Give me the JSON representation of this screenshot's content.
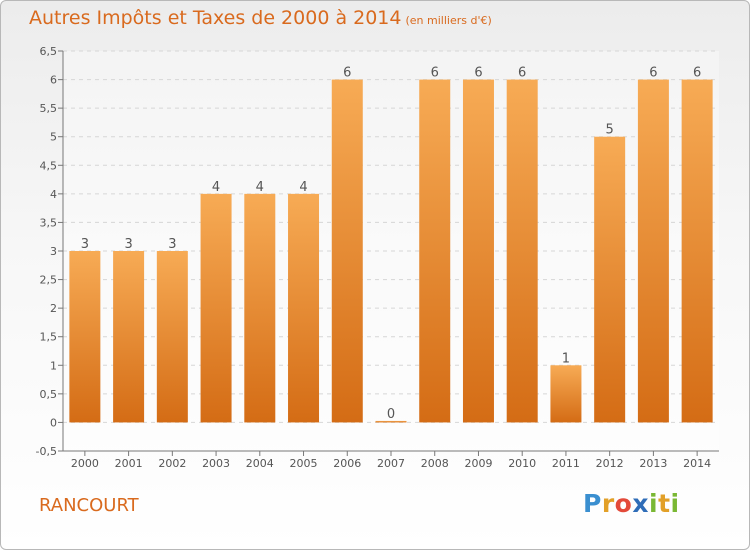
{
  "title": "Autres Impôts et Taxes de 2000 à 2014",
  "unit": "(en milliers d'€)",
  "commune": "RANCOURT",
  "logo": [
    "P",
    "r",
    "o",
    "x",
    "i",
    "t",
    "i"
  ],
  "colors": {
    "bar_top": "#f5a650",
    "bar_bottom": "#d96f17",
    "title": "#d96a1e"
  },
  "chart_data": {
    "type": "bar",
    "title": "Autres Impôts et Taxes de 2000 à 2014",
    "categories": [
      "2000",
      "2001",
      "2002",
      "2003",
      "2004",
      "2005",
      "2006",
      "2007",
      "2008",
      "2009",
      "2010",
      "2011",
      "2012",
      "2013",
      "2014"
    ],
    "values": [
      3,
      3,
      3,
      4,
      4,
      4,
      6,
      0,
      6,
      6,
      6,
      1,
      5,
      6,
      6
    ],
    "value_labels": [
      "3",
      "3",
      "3",
      "4",
      "4",
      "4",
      "6",
      "0",
      "6",
      "6",
      "6",
      "1",
      "5",
      "6",
      "6"
    ],
    "ylim": [
      -0.5,
      6.5
    ],
    "yticks": [
      "-0,5",
      "0",
      "0,5",
      "1",
      "1,5",
      "2",
      "2,5",
      "3",
      "3,5",
      "4",
      "4,5",
      "5",
      "5,5",
      "6",
      "6,5"
    ],
    "ytick_values": [
      -0.5,
      0,
      0.5,
      1,
      1.5,
      2,
      2.5,
      3,
      3.5,
      4,
      4.5,
      5,
      5.5,
      6,
      6.5
    ],
    "grid": true
  }
}
